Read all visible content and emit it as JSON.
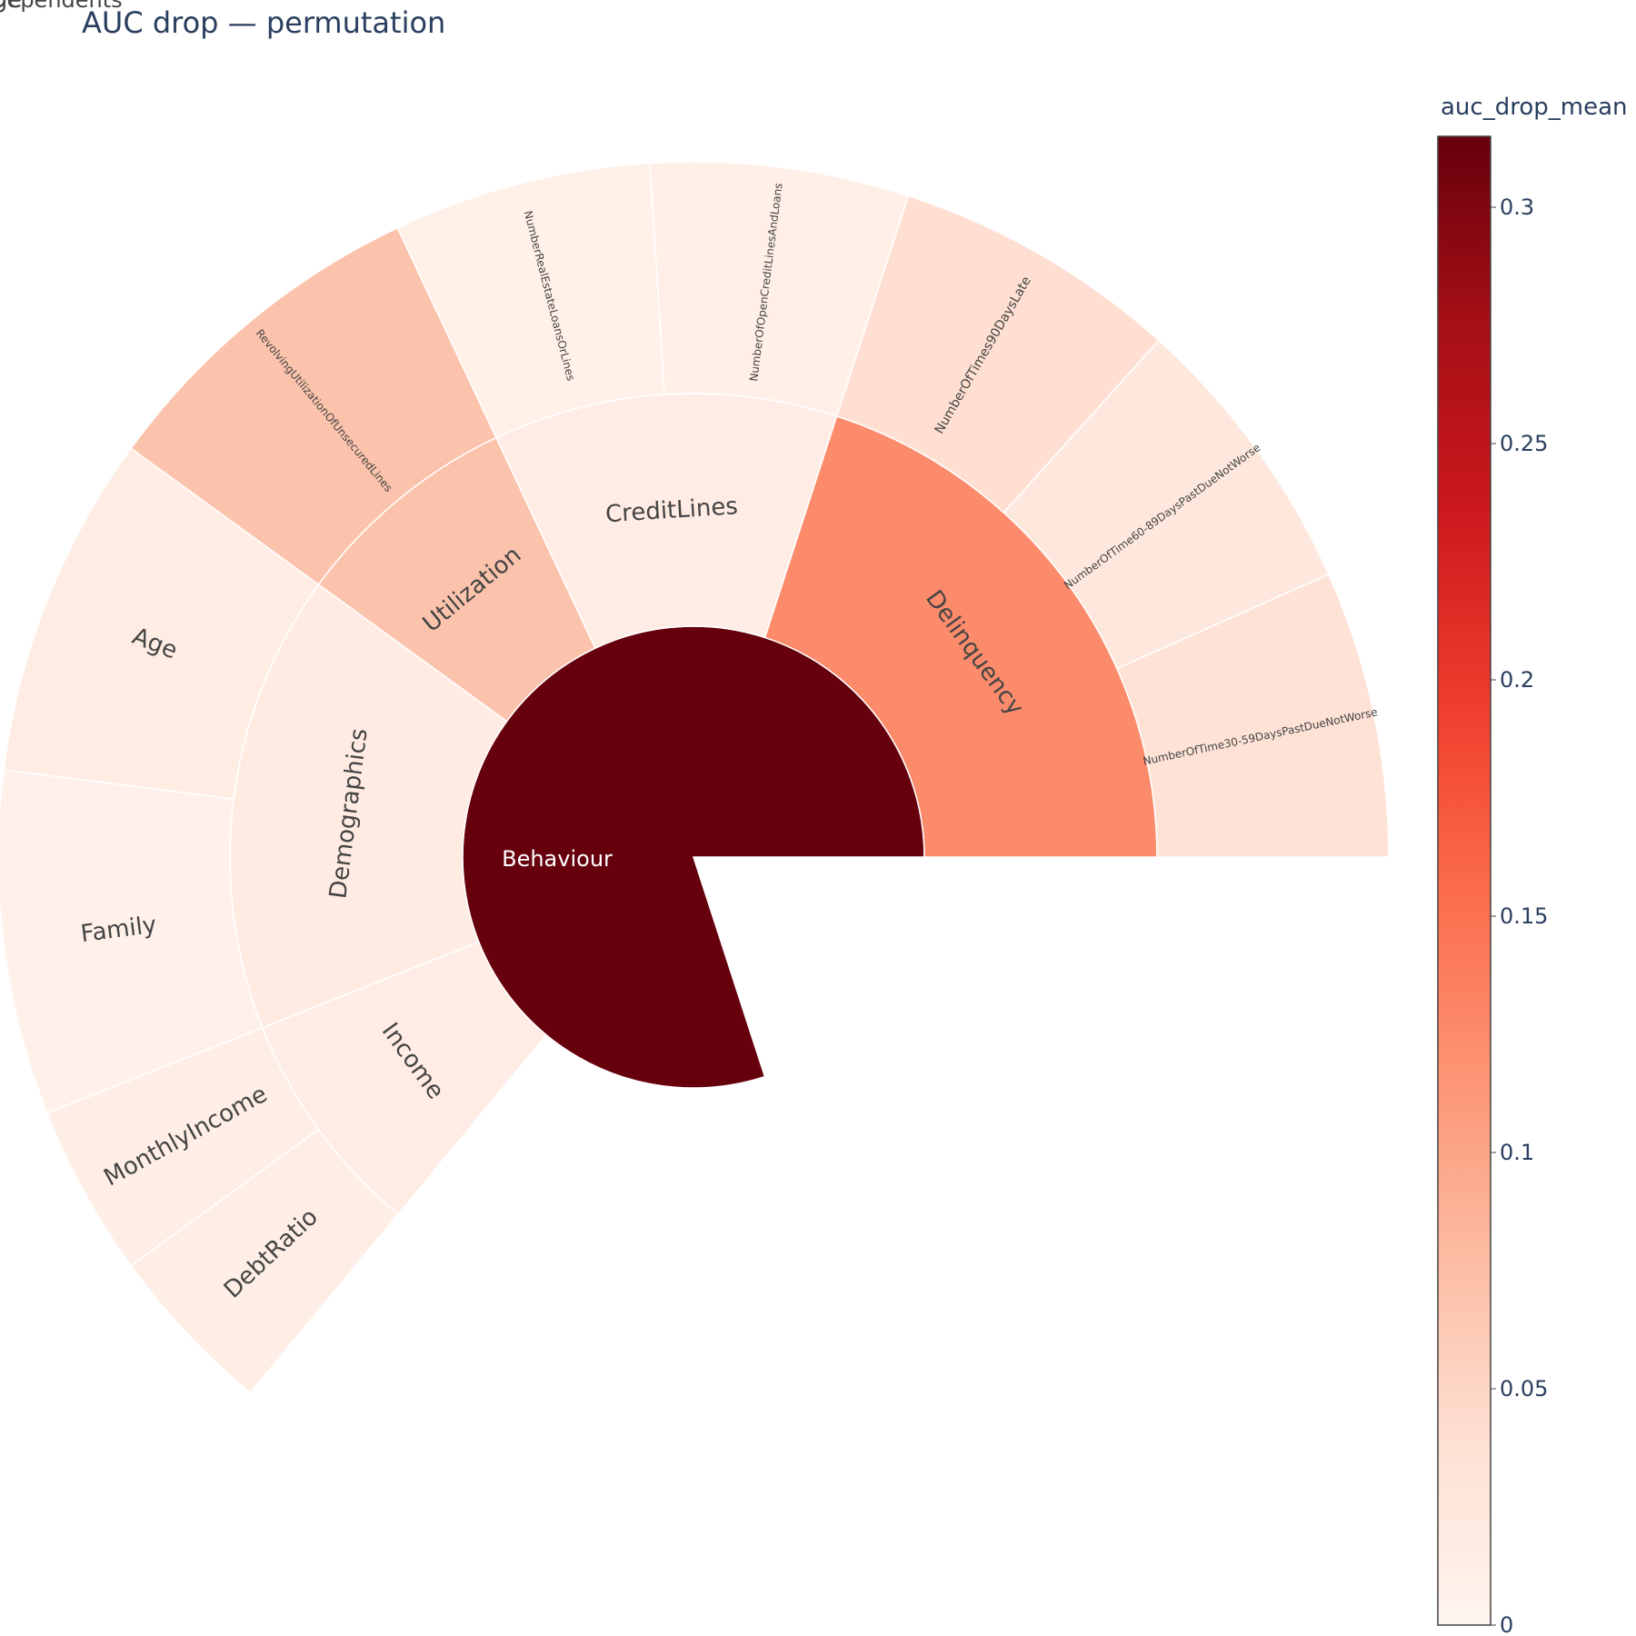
{
  "chart_data": {
    "type": "sunburst",
    "title": "AUC drop — permutation",
    "colorbar": {
      "title": "auc_drop_mean",
      "range": [
        0,
        0.315
      ],
      "ticks": [
        0,
        0.05,
        0.1,
        0.15,
        0.2,
        0.25,
        0.3
      ],
      "tick_labels": [
        "0",
        "0.05",
        "0.1",
        "0.15",
        "0.2",
        "0.25",
        "0.3"
      ],
      "colorscale": [
        "#fff5f0",
        "#fee0d2",
        "#fcbba1",
        "#fc9272",
        "#fb6a4a",
        "#ef3b2c",
        "#cb181d",
        "#a50f15",
        "#67000d"
      ]
    },
    "root": {
      "label": "Behaviour",
      "value": 0.315,
      "children": [
        {
          "label": "Delinquency",
          "value": 0.125,
          "children": [
            {
              "label": "NumberOfTime30-59DaysPastDueNotWorse",
              "value": 0.035
            },
            {
              "label": "NumberOfTime60-89DaysPastDueNotWorse",
              "value": 0.025
            },
            {
              "label": "NumberOfTimes90DaysLate",
              "value": 0.04
            }
          ]
        },
        {
          "label": "CreditLines",
          "value": 0.015,
          "children": [
            {
              "label": "NumberOfOpenCreditLinesAndLoans",
              "value": 0.012
            },
            {
              "label": "NumberRealEstateLoansOrLines",
              "value": 0.01
            }
          ]
        },
        {
          "label": "Utilization",
          "value": 0.07,
          "children": [
            {
              "label": "RevolvingUtilizationOfUnsecuredLines",
              "value": 0.07
            }
          ]
        },
        {
          "label": "Demographics",
          "value": 0.018,
          "children": [
            {
              "label": "Age",
              "value": 0.017,
              "children": [
                {
                  "label": "age",
                  "value": 0.017
                }
              ]
            },
            {
              "label": "Family",
              "value": 0.008,
              "children": [
                {
                  "label": "NumberOfDependents",
                  "value": 0.006
                }
              ]
            }
          ]
        },
        {
          "label": "Income",
          "value": 0.016,
          "children": [
            {
              "label": "MonthlyIncome",
              "value": 0.014
            },
            {
              "label": "DebtRatio",
              "value": 0.013
            }
          ]
        }
      ]
    }
  }
}
